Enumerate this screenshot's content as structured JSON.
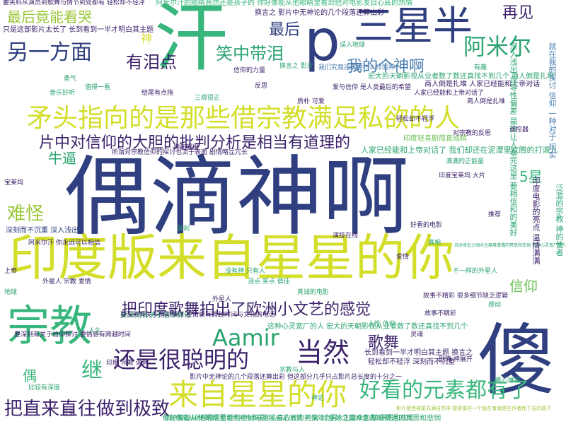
{
  "cloud": {
    "words": {
      "w01": "偶滴神啊",
      "w02": "印度版来自星星的你",
      "w03": "宗教",
      "w04": "傻",
      "w05": "汗",
      "w06": "p",
      "w07": "三星半",
      "w08": "矛头指向的是那些借宗教满足私欲的人",
      "w09": "片中对信仰的大胆的批判分析是相当有道理的",
      "w10": "来自星星的你",
      "w11": "好看的元素都有了",
      "w12": "把印度歌舞拍出了欧洲小文艺的感觉",
      "w13": "还是很聪明的",
      "w14": "当然",
      "w15": "Aamir",
      "w16": "把直来直往做到极致",
      "w17": "另一方面",
      "w18": "阿米尔",
      "w19": "笑中带泪",
      "w20": "有泪点",
      "w21": "最后竟能看哭",
      "w22": "最后",
      "w23": "再见",
      "w24": "我的个神啊",
      "w25": "难怪",
      "w26": "牛逼",
      "w27": "继",
      "w28": "偶",
      "w29": "歌舞",
      "w30": "信仰",
      "w31": "5星",
      "w32": "神",
      "w33": "阿米尔汗的眼睛竟然还是孩子的 你好像能从他眼睛里看到他对电影发自心底的热情",
      "w34": "宏大的天朝影视从业者数了数还真找不到几个 商人倒是扎堆",
      "w35": "人家已经能和上帝对话了 我们却还在泥潭里欢腾的打滚儿",
      "w36": "要笑料从演员到歌舞与情节到处都有 轻松却不轻浮",
      "w37": "只是这部影片太长了 长到看到一半才明白其主题",
      "w38": "印度轻喜剧简直成精",
      "w39": "深刻而不沉重 深入浅出",
      "w40": "要深刻有关于信仰探讨",
      "w41": "换言之 影片中无神论的几个段落还算出彩",
      "w42": "商人倒是扎堆 人家已经能和上帝对话",
      "w43": "你好像能从他眼睛里看到他对电影发自心底的热情 对身处之国众生靡难遭遇的冥思和悲悯",
      "w44": "影片中无神论的几个段落还算出彩 但这部分几乎只占影片总长度的十分之一",
      "w45": "这种心灵宽厂的人 宏大的天朝影视从业者数了数还真找不到几个",
      "w46": "要深刻有关于信仰探讨 要情感有跨越时间与文化的电话",
      "w47": "长到看到一半才明白其主题 换言之",
      "w48": "轻松却不轻浮 深刻而不沉重",
      "w49": "影片接连被尾充满自然神 提婆那些一个竟在有就是在作者而下去的路下",
      "w50": "所谓对宗教信仰的探讨也流于表面 剧情略显冗长",
      "w51": "故事不精彩 很多细节缺乏逻辑",
      "w52": "人家已经能和上帝对话了",
      "w53": "另对身处之国众生靡难遭遇的冥思和悲悯 这种心灵宽厂的人",
      "w54": "你好像能从他眼睛里看到他对电影发自心底的热情 对身处之国众生靡难遭遇的冥思和悲悯",
      "w55": "深入浅出 误导性偏差 最终让人看完这里 要相信和的美好",
      "w56": "就在我的探讨 信仰 一种对于 现实",
      "w57": "印度电影的亮点 温情满满",
      "w58": "泛滥的宗教 神的使者",
      "w59": "我们究竟还需要什么样的神",
      "w60": "爱与信仰 是人类最后的希望",
      "w61": "没有神 只有人",
      "w62": "阿米尔汗 你永远可以相信",
      "w63": "要深刻有关于信仰探讨 要情感有跨越时间",
      "w64": "满满的正能量",
      "w65": "印度宝莱坞 大片",
      "w66": "故事不精彩",
      "w67": "换言之 影片",
      "w68": "轻松却不轻浮",
      "w69": "商人倒是扎堆",
      "w70": "泪点 笑点 俱佳",
      "w71": "外星人 宗教 爱情",
      "w72": "真诚的电影",
      "w73": "演技在线",
      "w74": "比较有深度",
      "w75": "印度 宗教 讽刺",
      "w76": "人性 信仰",
      "w77": "好看的电影",
      "w78": "不一样的外星人",
      "w79": "神在哪里",
      "w80": "三观很正",
      "w81": "质朴 可爱",
      "w82": "值得一看",
      "w83": "结尾有点拖",
      "w84": "音乐好听",
      "w85": "信仰的力量",
      "w86": "误入地球",
      "w87": "对宗教的反思",
      "w88": "真心推荐",
      "w89": "剧情 神展开",
      "w90": "有趣",
      "w91": "外星人",
      "w92": "人生",
      "w93": "爱情",
      "w94": "神论",
      "w95": "宝莱坞",
      "w96": "讽刺",
      "w97": "推荐",
      "w98": "感动",
      "w99": "上帝",
      "w100": "地球",
      "w101": "欢乐",
      "w102": "宗教与人",
      "w103": "灵魂",
      "w104": "真相",
      "w105": "反思",
      "w106": "勇气",
      "w107": "遥控器"
    }
  }
}
